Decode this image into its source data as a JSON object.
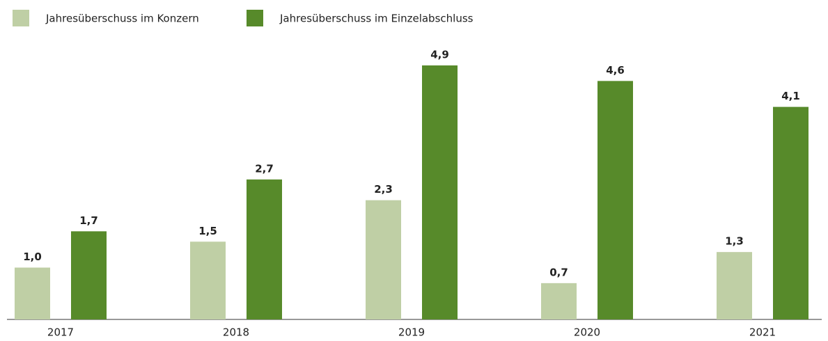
{
  "chart_data": {
    "type": "bar",
    "categories": [
      "2017",
      "2018",
      "2019",
      "2020",
      "2021"
    ],
    "series": [
      {
        "name": "Jahresüberschuss im Konzern",
        "color": "#bfcfa5",
        "values": [
          1.0,
          1.5,
          2.3,
          0.7,
          1.3
        ],
        "value_labels": [
          "1,0",
          "1,5",
          "2,3",
          "0,7",
          "1,3"
        ]
      },
      {
        "name": "Jahresüberschuss im Einzelabschluss",
        "color": "#578a2a",
        "values": [
          1.7,
          2.7,
          4.9,
          4.6,
          4.1
        ],
        "value_labels": [
          "1,7",
          "2,7",
          "4,9",
          "4,6",
          "4,1"
        ]
      }
    ],
    "legend": "top-left"
  }
}
